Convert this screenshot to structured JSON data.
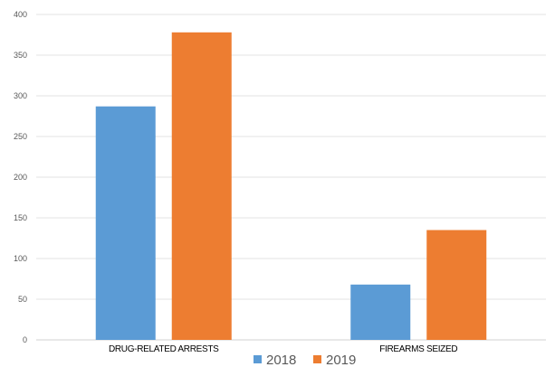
{
  "chart_data": {
    "type": "bar",
    "title": "",
    "xlabel": "",
    "ylabel": "",
    "categories": [
      "DRUG-RELATED ARRESTS",
      "FIREARMS SEIZED"
    ],
    "series": [
      {
        "name": "2018",
        "color": "#5B9BD5",
        "values": [
          287,
          68
        ]
      },
      {
        "name": "2019",
        "color": "#ED7D31",
        "values": [
          378,
          135
        ]
      }
    ],
    "ylim": [
      0,
      400
    ],
    "yticks": [
      "0",
      "50",
      "100",
      "150",
      "200",
      "250",
      "300",
      "350",
      "400"
    ],
    "grid": true,
    "legend_position": "bottom"
  }
}
